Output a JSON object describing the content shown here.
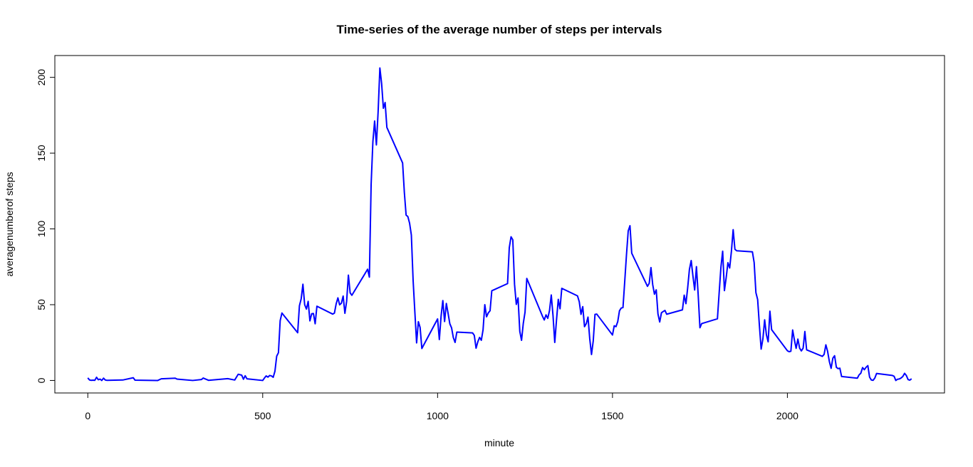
{
  "chart_data": {
    "type": "line",
    "title": "Time-series of the average number of steps per intervals",
    "x_label": "minute",
    "y_label": "averagenumberof steps",
    "x": [
      0,
      5,
      10,
      15,
      20,
      25,
      30,
      35,
      40,
      45,
      50,
      55,
      100,
      130,
      135,
      200,
      210,
      250,
      255,
      300,
      325,
      330,
      345,
      400,
      420,
      430,
      440,
      445,
      450,
      455,
      500,
      505,
      510,
      515,
      520,
      525,
      530,
      535,
      540,
      545,
      550,
      555,
      600,
      605,
      610,
      615,
      620,
      625,
      630,
      635,
      640,
      645,
      650,
      655,
      700,
      705,
      710,
      715,
      720,
      725,
      730,
      735,
      740,
      745,
      750,
      755,
      800,
      805,
      810,
      815,
      820,
      825,
      830,
      835,
      840,
      845,
      850,
      855,
      900,
      905,
      910,
      915,
      920,
      925,
      930,
      935,
      940,
      945,
      950,
      955,
      1000,
      1005,
      1010,
      1015,
      1020,
      1025,
      1030,
      1035,
      1040,
      1045,
      1050,
      1055,
      1100,
      1105,
      1110,
      1115,
      1120,
      1125,
      1130,
      1135,
      1140,
      1145,
      1150,
      1155,
      1200,
      1205,
      1210,
      1215,
      1220,
      1225,
      1230,
      1235,
      1240,
      1245,
      1250,
      1255,
      1300,
      1305,
      1310,
      1315,
      1320,
      1325,
      1330,
      1335,
      1340,
      1345,
      1350,
      1355,
      1400,
      1405,
      1410,
      1415,
      1420,
      1425,
      1430,
      1435,
      1440,
      1445,
      1450,
      1455,
      1500,
      1505,
      1510,
      1515,
      1520,
      1525,
      1530,
      1535,
      1540,
      1545,
      1550,
      1555,
      1600,
      1605,
      1610,
      1615,
      1620,
      1625,
      1630,
      1635,
      1640,
      1645,
      1650,
      1655,
      1700,
      1705,
      1710,
      1715,
      1720,
      1725,
      1730,
      1735,
      1740,
      1745,
      1750,
      1755,
      1800,
      1805,
      1810,
      1815,
      1820,
      1825,
      1830,
      1835,
      1840,
      1845,
      1850,
      1855,
      1900,
      1905,
      1910,
      1915,
      1920,
      1925,
      1930,
      1935,
      1940,
      1945,
      1950,
      1955,
      2000,
      2005,
      2010,
      2015,
      2020,
      2025,
      2030,
      2035,
      2040,
      2045,
      2050,
      2055,
      2100,
      2105,
      2110,
      2115,
      2120,
      2125,
      2130,
      2135,
      2140,
      2145,
      2150,
      2155,
      2200,
      2205,
      2210,
      2215,
      2220,
      2225,
      2230,
      2235,
      2240,
      2245,
      2250,
      2255,
      2300,
      2305,
      2310,
      2315,
      2320,
      2325,
      2330,
      2335,
      2340,
      2345,
      2350,
      2355
    ],
    "series": [
      {
        "color": "#0000ff",
        "values": [
          1.7,
          0.3,
          0.1,
          0.2,
          0.1,
          2.1,
          0.5,
          0.9,
          0,
          1.5,
          0.3,
          0.1,
          0.3,
          1.8,
          0.2,
          0,
          1.1,
          1.5,
          0.9,
          0,
          0.6,
          1.6,
          0.1,
          1.2,
          0.3,
          4.1,
          3.5,
          0.8,
          3.1,
          1.1,
          0,
          1.6,
          3,
          2.2,
          3.3,
          3,
          2.1,
          6.1,
          16,
          18.3,
          39.5,
          44.5,
          31.5,
          49.3,
          53.8,
          63.5,
          50,
          47.1,
          52.2,
          39.3,
          44,
          44.2,
          37.4,
          49,
          43.8,
          44.4,
          50.5,
          54.5,
          49.9,
          51,
          55.7,
          44.3,
          52.3,
          69.5,
          57.8,
          56.2,
          73.4,
          68.2,
          129.4,
          157.5,
          171.2,
          155.4,
          177.3,
          206.2,
          195.9,
          179.6,
          183.4,
          167,
          143.5,
          124,
          109.1,
          108.1,
          103.7,
          95.97,
          66.2,
          45.2,
          24.8,
          38.8,
          34.98,
          21.1,
          40.6,
          27,
          42.4,
          52.7,
          38.9,
          50.8,
          44.3,
          37.4,
          34.7,
          28.3,
          25.1,
          31.9,
          31.4,
          29.7,
          21.3,
          25.5,
          28.4,
          26.5,
          33.4,
          50,
          42,
          44.6,
          46,
          59.2,
          63.9,
          87.7,
          94.8,
          92.8,
          63.4,
          50.2,
          54.5,
          32.4,
          26.5,
          37.7,
          45.1,
          67.3,
          42.3,
          39.9,
          43.3,
          40.98,
          46.2,
          56.4,
          42.8,
          25.1,
          39.97,
          53.5,
          47.3,
          60.8,
          55.8,
          51.96,
          43.6,
          48.7,
          35.5,
          37.5,
          41.8,
          27.5,
          17.1,
          26.1,
          43.6,
          43.8,
          30,
          36.1,
          35.5,
          38.8,
          45.96,
          47.8,
          48.1,
          65.3,
          82.9,
          98.7,
          102.1,
          83.96,
          62.1,
          64.1,
          74.5,
          63.2,
          56.9,
          59.8,
          43.9,
          38.6,
          44.7,
          45.5,
          46.2,
          43.7,
          46.6,
          56.3,
          50.7,
          61.2,
          73.4,
          79.1,
          68.9,
          59.7,
          75.1,
          56.5,
          34.8,
          37.5,
          40.7,
          58,
          74.7,
          85.3,
          59.3,
          67.8,
          77.7,
          74.2,
          85.3,
          99.5,
          86.6,
          85.6,
          84.9,
          77.8,
          58,
          53.4,
          36.3,
          20.7,
          27.4,
          40,
          30.2,
          25.5,
          45.7,
          33.5,
          19.6,
          19,
          19.3,
          33.3,
          26.8,
          21.2,
          27.3,
          21.3,
          19.5,
          21.3,
          32.3,
          20.2,
          15.9,
          17.2,
          23.5,
          19.2,
          12.5,
          8,
          14.7,
          16.3,
          8.7,
          7.8,
          8.1,
          2.6,
          1.5,
          3.7,
          4.8,
          8.5,
          7.1,
          8.7,
          9.8,
          2.2,
          0.3,
          0.1,
          1.6,
          4.6,
          3.3,
          2.8,
          0,
          0.8,
          1,
          1.6,
          2.6,
          4.7,
          3.3,
          0.6,
          0.2,
          1.1
        ]
      }
    ],
    "xlim": [
      -94.2,
      2449.2
    ],
    "xticks": [
      0,
      500,
      1000,
      1500,
      2000
    ],
    "ylim": [
      -8.25,
      214.4
    ],
    "yticks": [
      0,
      50,
      100,
      150,
      200
    ],
    "grid": false
  }
}
